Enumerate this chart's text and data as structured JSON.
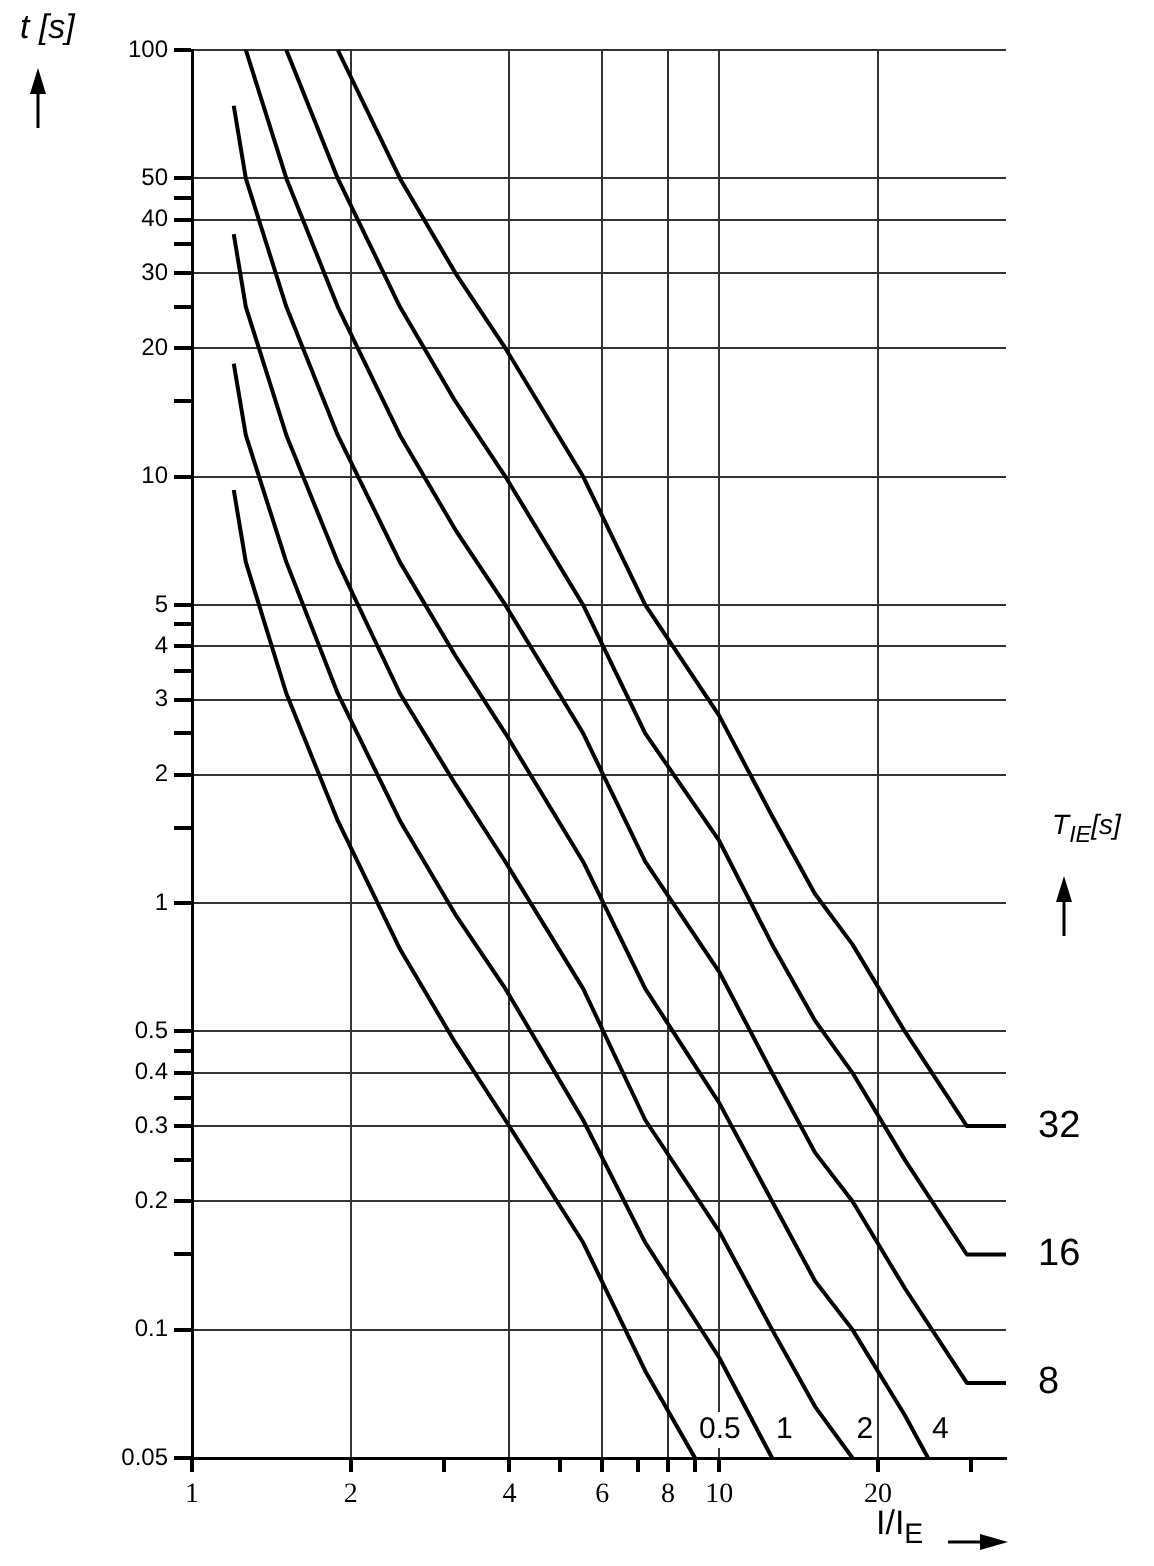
{
  "chart_data": {
    "type": "line",
    "xlabel": "I/I$_{E}$",
    "ylabel": "t [s]",
    "legend_title": "T$_{IE}$[s]",
    "log": "xy",
    "grid": true,
    "legend": false,
    "marker": "none",
    "line_style": "solid",
    "xlim": [
      1,
      35
    ],
    "ylim": [
      0.05,
      100
    ],
    "xticks": [
      1,
      2,
      {
        "value": 3,
        "label": null
      },
      4,
      {
        "value": 5,
        "label": null
      },
      6,
      {
        "value": 7,
        "label": null
      },
      8,
      {
        "value": 9,
        "label": null
      },
      10,
      20,
      {
        "value": 30,
        "label": null
      }
    ],
    "yticks": [
      0.05,
      0.1,
      {
        "value": 0.15,
        "label": null
      },
      0.2,
      {
        "value": 0.25,
        "label": null
      },
      0.3,
      {
        "value": 0.35,
        "label": null
      },
      0.4,
      {
        "value": 0.45,
        "label": null
      },
      0.5,
      1,
      {
        "value": 1.5,
        "label": null
      },
      2,
      {
        "value": 2.5,
        "label": null
      },
      3,
      {
        "value": 3.5,
        "label": null
      },
      4,
      {
        "value": 4.5,
        "label": null
      },
      5,
      10,
      {
        "value": 15,
        "label": null
      },
      20,
      {
        "value": 25,
        "label": null
      },
      30,
      {
        "value": 35,
        "label": null
      },
      40,
      {
        "value": 45,
        "label": null
      },
      50,
      100
    ],
    "series": [
      {
        "name": "0.5",
        "color": "#000000",
        "x": [
          1.2,
          1.265,
          1.51,
          1.89,
          2.48,
          3.16,
          3.93,
          5.52,
          7.24,
          9
        ],
        "values": [
          9.3,
          6.3,
          3.1,
          1.56,
          0.78,
          0.47,
          0.31,
          0.16,
          0.08,
          0.05
        ]
      },
      {
        "name": "1",
        "color": "#000000",
        "x": [
          1.2,
          1.265,
          1.51,
          1.89,
          2.48,
          3.16,
          3.93,
          5.52,
          7.24,
          10,
          12.6
        ],
        "values": [
          18.4,
          12.5,
          6.3,
          3.1,
          1.56,
          0.94,
          0.63,
          0.31,
          0.16,
          0.086,
          0.05
        ]
      },
      {
        "name": "2",
        "color": "#000000",
        "x": [
          1.2,
          1.265,
          1.51,
          1.89,
          2.48,
          3.16,
          3.93,
          5.52,
          7.24,
          10,
          12.6,
          15.2,
          17.9
        ],
        "values": [
          37,
          25,
          12.5,
          6.3,
          3.1,
          1.9,
          1.25,
          0.63,
          0.31,
          0.17,
          0.1,
          0.066,
          0.05
        ]
      },
      {
        "name": "4",
        "color": "#000000",
        "x": [
          1.2,
          1.265,
          1.51,
          1.89,
          2.48,
          3.16,
          3.93,
          5.52,
          7.24,
          10,
          12.6,
          15.2,
          17.9,
          22.5,
          24.9
        ],
        "values": [
          74,
          50,
          25,
          12.5,
          6.3,
          3.8,
          2.5,
          1.25,
          0.63,
          0.34,
          0.2,
          0.13,
          0.1,
          0.063,
          0.05
        ]
      },
      {
        "name": "8",
        "color": "#000000",
        "x": [
          1.265,
          1.51,
          1.89,
          2.48,
          3.16,
          3.93,
          5.52,
          7.24,
          10,
          12.6,
          15.2,
          17.9,
          22.5,
          29.5,
          35
        ],
        "values": [
          100,
          50,
          25,
          12.5,
          7.5,
          5,
          2.5,
          1.25,
          0.69,
          0.4,
          0.26,
          0.2,
          0.125,
          0.075,
          0.075
        ]
      },
      {
        "name": "16",
        "color": "#000000",
        "x": [
          1.51,
          1.89,
          2.48,
          3.16,
          3.93,
          5.52,
          7.24,
          10,
          12.6,
          15.2,
          17.9,
          22.5,
          29.5,
          35
        ],
        "values": [
          100,
          50,
          25,
          15,
          10,
          5,
          2.5,
          1.4,
          0.8,
          0.53,
          0.4,
          0.25,
          0.15,
          0.15
        ]
      },
      {
        "name": "32",
        "color": "#000000",
        "x": [
          1.89,
          2.48,
          3.16,
          3.93,
          5.52,
          7.24,
          10,
          12.6,
          15.2,
          17.9,
          22.5,
          29.5,
          35
        ],
        "values": [
          100,
          50,
          30,
          20,
          10,
          5,
          2.75,
          1.6,
          1.05,
          0.8,
          0.5,
          0.3,
          0.3
        ]
      }
    ]
  }
}
